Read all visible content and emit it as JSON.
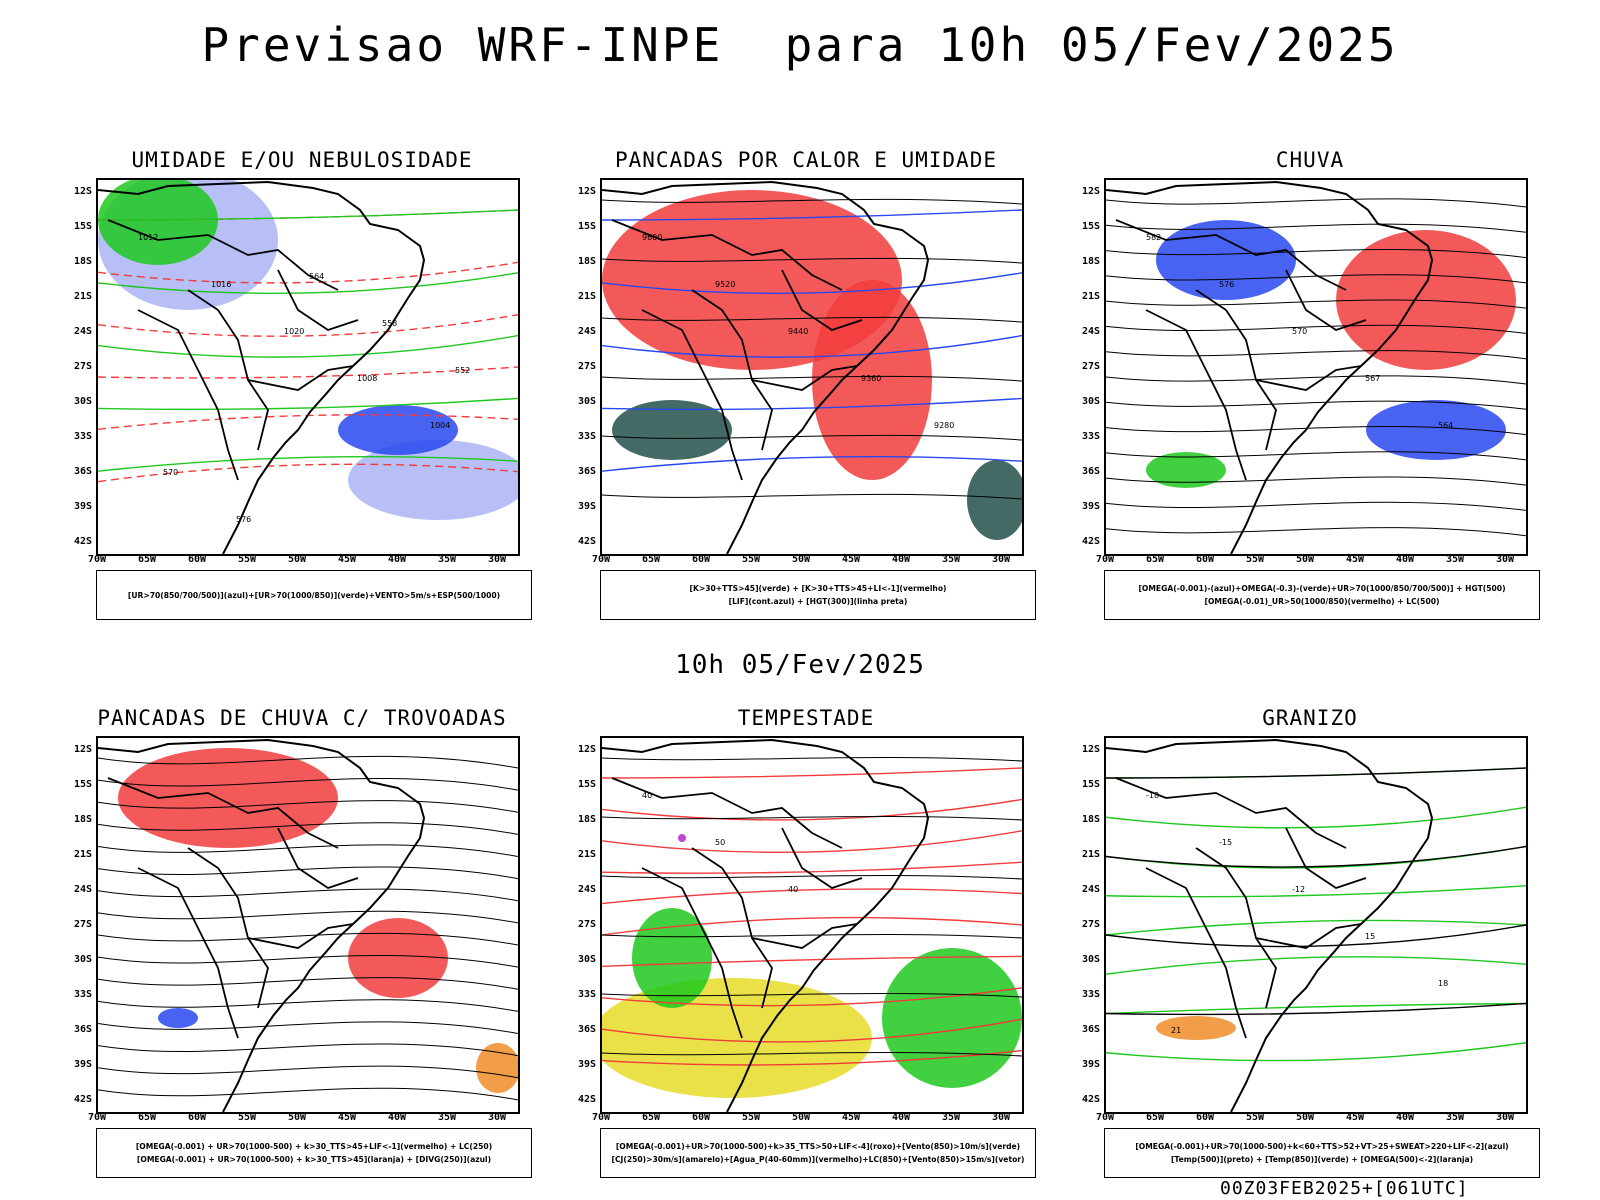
{
  "main_title": "Previsao WRF-INPE  para 10h 05/Fev/2025",
  "mid_title": "10h 05/Fev/2025",
  "footer": "00Z03FEB2025+[061UTC]",
  "lat_labels": [
    "12S",
    "15S",
    "18S",
    "21S",
    "24S",
    "27S",
    "30S",
    "33S",
    "36S",
    "39S",
    "42S"
  ],
  "lon_labels": [
    "70W",
    "65W",
    "60W",
    "55W",
    "50W",
    "45W",
    "40W",
    "35W",
    "30W"
  ],
  "colors": {
    "red": "#f23c3c",
    "green": "#1ec81e",
    "blue": "#2848f0",
    "lightblue": "#aab4f4",
    "yellow": "#e6dc28",
    "darkteal": "#23504a",
    "orange": "#f08c28",
    "purple": "#b428c8"
  },
  "panels": [
    {
      "title": "UMIDADE E/OU NEBULOSIDADE",
      "legend": [
        "[UR>70(850/700/500)](azul)+[UR>70(1000/850)](verde)+VENTO>5m/s+ESP(500/1000)"
      ],
      "contour_labels": [
        "1012",
        "1016",
        "1020",
        "1008",
        "1004",
        "570",
        "576",
        "564",
        "558",
        "552"
      ]
    },
    {
      "title": "PANCADAS POR CALOR E UMIDADE",
      "legend": [
        "[K>30+TTS>45](verde) + [K>30+TTS>45+LI<-1](vermelho)",
        "[LIF](cont.azul) + [HGT(300)](linha preta)"
      ],
      "contour_labels": [
        "9600",
        "9520",
        "9440",
        "9360",
        "9280"
      ]
    },
    {
      "title": "CHUVA",
      "legend": [
        "[OMEGA(-0.001)-(azul)+OMEGA(-0.3)-(verde)+UR>70(1000/850/700/500)] + HGT(500)",
        "[OMEGA(-0.01)_UR>50(1000/850)(vermelho) + LC(500)"
      ],
      "contour_labels": [
        "582",
        "576",
        "570",
        "567",
        "564"
      ]
    },
    {
      "title": "PANCADAS DE CHUVA C/ TROVOADAS",
      "legend": [
        "[OMEGA(-0.001) + UR>70(1000-500) + k>30_TTS>45+LIF<-1](vermelho) + LC(250)",
        "[OMEGA(-0.001) + UR>70(1000-500) + k>30_TTS>45](laranja) + [DIVG(250)](azul)"
      ],
      "contour_labels": []
    },
    {
      "title": "TEMPESTADE",
      "legend": [
        "[OMEGA(-0.001)+UR>70(1000-500)+k>35_TTS>50+LIF<-4](roxo)+[Vento(850)>10m/s](verde)",
        "[CJ(250)>30m/s](amarelo)+[Agua_P(40-60mm)](vermelho)+LC(850)+[Vento(850)>15m/s](vetor)"
      ],
      "contour_labels": [
        "40",
        "50",
        "40"
      ]
    },
    {
      "title": "GRANIZO",
      "legend": [
        "[OMEGA(-0.001)+UR>70(1000-500)+k<60+TTS>52+VT>25+SWEAT>220+LIF<-2](azul)",
        "[Temp(500)](preto) + [Temp(850)](verde) + [OMEGA(500)<-2](laranja)"
      ],
      "contour_labels": [
        "-18",
        "-15",
        "-12",
        "15",
        "18",
        "21"
      ]
    }
  ]
}
